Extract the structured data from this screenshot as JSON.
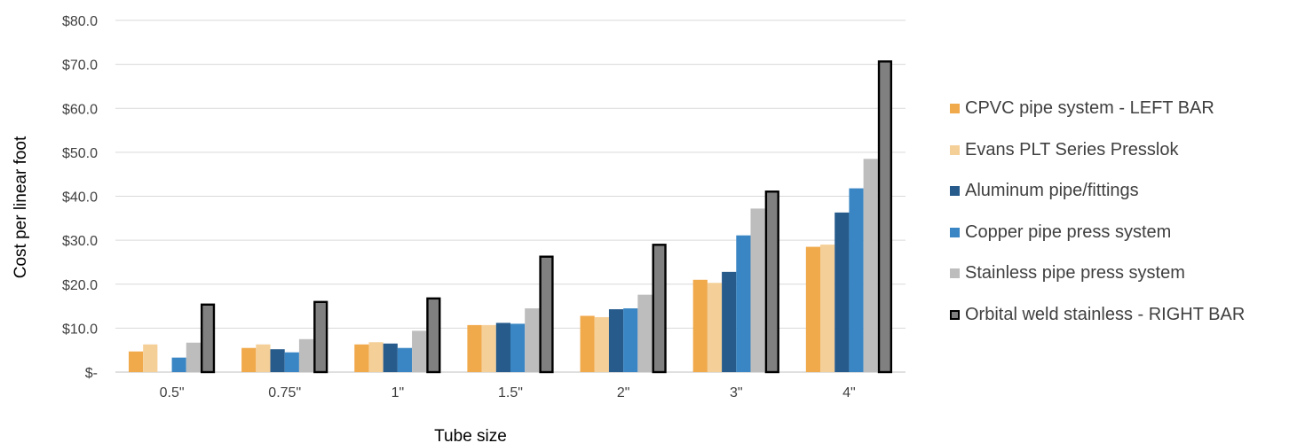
{
  "chart_data": {
    "type": "bar",
    "title": "",
    "xlabel": "Tube size",
    "ylabel": "Cost per linear foot",
    "categories": [
      "0.5\"",
      "0.75\"",
      "1\"",
      "1.5\"",
      "2\"",
      "3\"",
      "4\""
    ],
    "ylim": [
      0,
      80
    ],
    "yticks": [
      0,
      10,
      20,
      30,
      40,
      50,
      60,
      70,
      80
    ],
    "ytick_labels": [
      "$-",
      "$10.0",
      "$20.0",
      "$30.0",
      "$40.0",
      "$50.0",
      "$60.0",
      "$70.0",
      "$80.0"
    ],
    "grid": true,
    "legend_position": "right",
    "series": [
      {
        "name": "CPVC pipe system - LEFT BAR",
        "color": "#F0A94B",
        "values": [
          4.7,
          5.5,
          6.3,
          10.7,
          12.8,
          21.0,
          28.5
        ]
      },
      {
        "name": "Evans PLT Series Presslok",
        "color": "#F5CF98",
        "values": [
          6.3,
          6.3,
          6.8,
          10.7,
          12.5,
          20.3,
          29.0
        ]
      },
      {
        "name": "Aluminum pipe/fittings",
        "color": "#265B8C",
        "values": [
          null,
          5.2,
          6.5,
          11.2,
          14.3,
          22.8,
          36.3
        ]
      },
      {
        "name": "Copper pipe press system",
        "color": "#3A86C4",
        "values": [
          3.3,
          4.5,
          5.5,
          11.0,
          14.5,
          31.1,
          41.8
        ]
      },
      {
        "name": "Stainless pipe press system",
        "color": "#BDBDBD",
        "values": [
          6.7,
          7.5,
          9.4,
          14.5,
          17.6,
          37.2,
          48.5
        ]
      },
      {
        "name": "Orbital weld stainless - RIGHT BAR",
        "color": "#808080",
        "border": "#000000",
        "values": [
          15.6,
          16.2,
          17.0,
          26.5,
          29.2,
          41.3,
          70.9
        ]
      }
    ]
  }
}
